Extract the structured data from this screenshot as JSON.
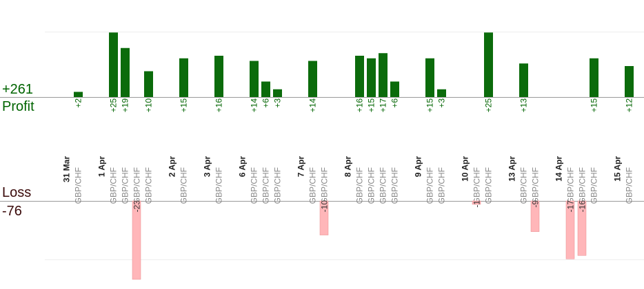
{
  "summary": {
    "profit_total": "+261",
    "profit_label": "Profit",
    "loss_label": "Loss",
    "loss_total": "-76"
  },
  "colors": {
    "profit_bar": "#0b6b0b",
    "loss_bar": "#ffb6b9",
    "profit_text": "#006400",
    "loss_text": "#3a0a0a",
    "date_text": "#222222",
    "pair_text": "#888888"
  },
  "chart_data": {
    "type": "bar",
    "grid": true,
    "profit_scale_max": 25,
    "loss_scale_max": 23,
    "groups": [
      {
        "date": "31 Mar",
        "trades": [
          {
            "pair": "GBP/CHF",
            "result": 2
          }
        ]
      },
      {
        "date": "1 Apr",
        "trades": [
          {
            "pair": "GBP/CHF",
            "result": 25
          },
          {
            "pair": "GBP/CHF",
            "result": 19
          },
          {
            "pair": "GBP/CHF",
            "result": -23
          },
          {
            "pair": "GBP/CHF",
            "result": 10
          }
        ]
      },
      {
        "date": "2 Apr",
        "trades": [
          {
            "pair": "GBP/CHF",
            "result": 15
          }
        ]
      },
      {
        "date": "3 Apr",
        "trades": [
          {
            "pair": "GBP/CHF",
            "result": 16
          }
        ]
      },
      {
        "date": "6 Apr",
        "trades": [
          {
            "pair": "GBP/CHF",
            "result": 14
          },
          {
            "pair": "GBP/CHF",
            "result": 6
          },
          {
            "pair": "GBP/CHF",
            "result": 3
          }
        ]
      },
      {
        "date": "7 Apr",
        "trades": [
          {
            "pair": "GBP/CHF",
            "result": 14
          },
          {
            "pair": "GBP/CHF",
            "result": -10
          }
        ]
      },
      {
        "date": "8 Apr",
        "trades": [
          {
            "pair": "GBP/CHF",
            "result": 16
          },
          {
            "pair": "GBP/CHF",
            "result": 15
          },
          {
            "pair": "GBP/CHF",
            "result": 17
          },
          {
            "pair": "GBP/CHF",
            "result": 6
          }
        ]
      },
      {
        "date": "9 Apr",
        "trades": [
          {
            "pair": "GBP/CHF",
            "result": 15
          },
          {
            "pair": "GBP/CHF",
            "result": 3
          }
        ]
      },
      {
        "date": "10 Apr",
        "trades": [
          {
            "pair": "GBP/CHF",
            "result": -1
          },
          {
            "pair": "GBP/CHF",
            "result": 25
          }
        ]
      },
      {
        "date": "13 Apr",
        "trades": [
          {
            "pair": "GBP/CHF",
            "result": 13
          },
          {
            "pair": "GBP/CHF",
            "result": -9
          }
        ]
      },
      {
        "date": "14 Apr",
        "trades": [
          {
            "pair": "GBP/CHF",
            "result": -17
          },
          {
            "pair": "GBP/CHF",
            "result": -16
          },
          {
            "pair": "GBP/CHF",
            "result": 15
          }
        ]
      },
      {
        "date": "15 Apr",
        "trades": [
          {
            "pair": "GBP/CHF",
            "result": 12
          }
        ]
      }
    ]
  }
}
